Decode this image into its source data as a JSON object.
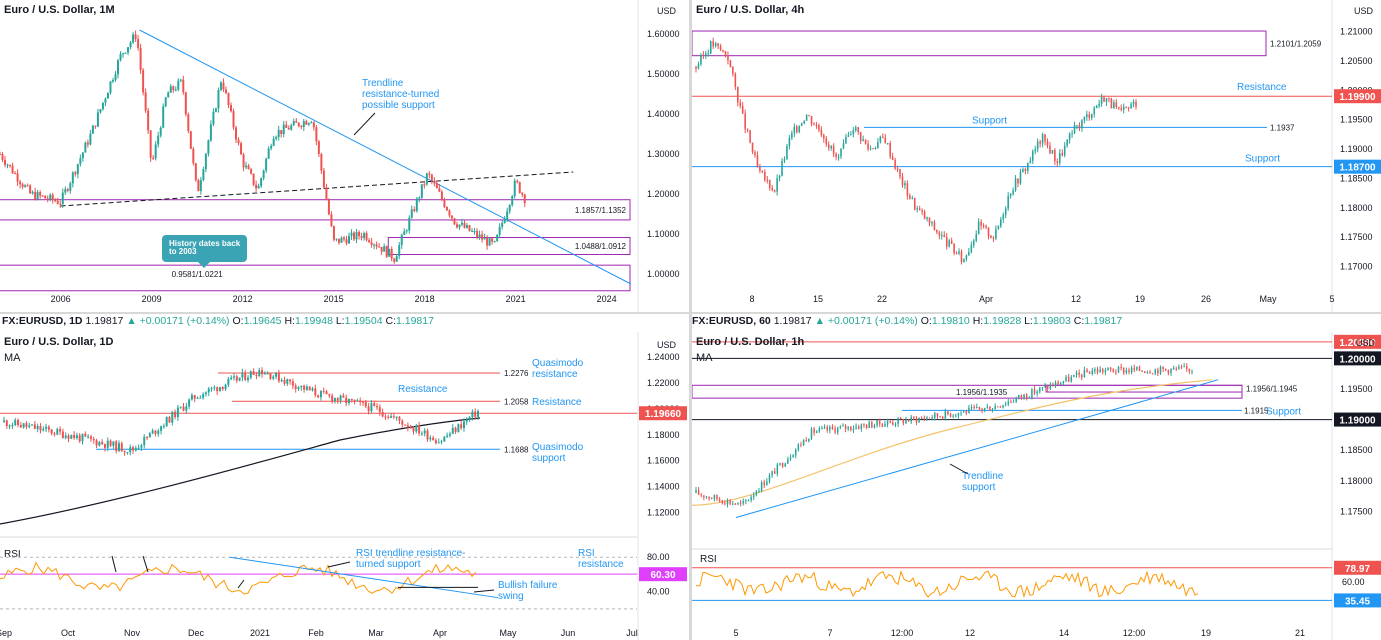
{
  "panels": {
    "monthly": {
      "title": "Euro / U.S. Dollar, 1M",
      "currency": "USD",
      "y_ticks": [
        "1.60000",
        "1.50000",
        "1.40000",
        "1.30000",
        "1.20000",
        "1.10000",
        "1.00000"
      ],
      "x_ticks": [
        "2006",
        "2009",
        "2012",
        "2015",
        "2018",
        "2021",
        "2024"
      ],
      "zone_labels": [
        "1.1857/1.1352",
        "1.0488/1.0912",
        "0.9581/1.0221"
      ],
      "annotation_trendline": [
        "Trendline",
        "resistance-turned",
        "possible support"
      ],
      "history_note": [
        "History dates back",
        "to 2003"
      ]
    },
    "h4": {
      "title": "Euro / U.S. Dollar, 4h",
      "currency": "USD",
      "y_ticks": [
        "1.21000",
        "1.20500",
        "1.20000",
        "1.19500",
        "1.19000",
        "1.18500",
        "1.18000",
        "1.17500",
        "1.17000"
      ],
      "x_ticks": [
        "8",
        "15",
        "22",
        "Apr",
        "12",
        "19",
        "26",
        "May",
        "5"
      ],
      "zone_label": "1.2101/1.2059",
      "level_1937": "1.1937",
      "resistance": "Resistance",
      "support_inner": "Support",
      "support_outer": "Support",
      "price_tag_res": "1.19900",
      "price_tag_sup": "1.18700"
    },
    "daily": {
      "ticker": {
        "symbol": "FX:EURUSD, 1D",
        "last": "1.19817",
        "change": "▲ +0.00171 (+0.14%)",
        "o_label": "O:",
        "o": "1.19645",
        "h_label": "H:",
        "h": "1.19948",
        "l_label": "L:",
        "l": "1.19504",
        "c_label": "C:",
        "c": "1.19817"
      },
      "title": "Euro / U.S. Dollar, 1D",
      "ma_label": "MA",
      "currency": "USD",
      "y_ticks": [
        "1.24000",
        "1.22000",
        "1.20000",
        "1.18000",
        "1.16000",
        "1.14000",
        "1.12000"
      ],
      "x_ticks": [
        "Sep",
        "Oct",
        "Nov",
        "Dec",
        "2021",
        "Feb",
        "Mar",
        "Apr",
        "May",
        "Jun",
        "Jul"
      ],
      "levels": [
        "1.2276",
        "1.2058",
        "1.1688"
      ],
      "qm_resistance": [
        "Quasimodo",
        "resistance"
      ],
      "resistance_1": "Resistance",
      "resistance_2": "Resistance",
      "qm_support": [
        "Quasimodo",
        "support"
      ],
      "price_tag": "1.19660",
      "rsi": {
        "label": "RSI",
        "y_ticks": [
          "80.00",
          "40.00"
        ],
        "value_tag": "60.30",
        "note_trend": [
          "RSI trendline resistance-",
          "turned support"
        ],
        "note_res": [
          "RSI",
          "resistance"
        ],
        "note_fail": [
          "Bullish failure",
          "swing"
        ]
      }
    },
    "hourly": {
      "ticker": {
        "symbol": "FX:EURUSD, 60",
        "last": "1.19817",
        "change": "▲ +0.00171 (+0.14%)",
        "o_label": "O:",
        "o": "1.19810",
        "h_label": "H:",
        "h": "1.19828",
        "l_label": "L:",
        "l": "1.19803",
        "c_label": "C:",
        "c": "1.19817"
      },
      "title": "Euro / U.S. Dollar, 1h",
      "ma_label": "MA",
      "currency": "USD",
      "y_ticks": [
        "1.19500",
        "1.18500",
        "1.18000",
        "1.17500"
      ],
      "x_ticks": [
        "5",
        "7",
        "12:00",
        "12",
        "14",
        "12:00",
        "19",
        "21"
      ],
      "zone_labels": [
        "1.1956/1.1935",
        "1.1956/1.1945"
      ],
      "level_1915": "1.1915",
      "support": "Support",
      "trendline_note": [
        "Trendline",
        "support"
      ],
      "tag_top": "1.20200",
      "tag_1": "1.20000",
      "tag_2": "1.19000",
      "rsi": {
        "label": "RSI",
        "y_tick": "60.00",
        "tag_top": "78.97",
        "tag_bottom": "35.45"
      }
    }
  },
  "chart_data": [
    {
      "type": "line",
      "title": "Euro / U.S. Dollar, 1M",
      "x": [
        2004.0,
        2005.0,
        2006.0,
        2007.0,
        2008.0,
        2008.5,
        2009.0,
        2009.5,
        2010.0,
        2010.5,
        2011.3,
        2012.0,
        2012.5,
        2013.0,
        2014.3,
        2015.0,
        2016.0,
        2017.0,
        2018.1,
        2019.0,
        2020.3,
        2021.0,
        2021.3
      ],
      "y": [
        1.3,
        1.2,
        1.18,
        1.35,
        1.55,
        1.6,
        1.27,
        1.45,
        1.48,
        1.2,
        1.49,
        1.28,
        1.21,
        1.35,
        1.39,
        1.08,
        1.1,
        1.04,
        1.25,
        1.13,
        1.07,
        1.23,
        1.19
      ],
      "xlim": [
        2004.0,
        2025.0
      ],
      "ylim": [
        0.96,
        1.64
      ],
      "xlabel": "",
      "ylabel": ""
    },
    {
      "type": "line",
      "title": "Euro / U.S. Dollar, 4h",
      "x": [
        0,
        2,
        4,
        6,
        8,
        10,
        12,
        14,
        16,
        18,
        20,
        22,
        24,
        26,
        28,
        30,
        32,
        34,
        36,
        38,
        40,
        42,
        44,
        46,
        48,
        50,
        52,
        54,
        56
      ],
      "y": [
        1.204,
        1.208,
        1.206,
        1.195,
        1.186,
        1.183,
        1.192,
        1.196,
        1.193,
        1.188,
        1.194,
        1.19,
        1.192,
        1.185,
        1.18,
        1.177,
        1.174,
        1.171,
        1.177,
        1.175,
        1.183,
        1.187,
        1.192,
        1.188,
        1.193,
        1.196,
        1.199,
        1.196,
        1.198
      ],
      "ylim": [
        1.166,
        1.213
      ]
    },
    {
      "type": "line",
      "title": "Euro / U.S. Dollar, 1D",
      "x": [
        "Sep",
        "Oct",
        "Nov",
        "Dec",
        "2021",
        "Feb",
        "Mar",
        "Apr",
        "May"
      ],
      "y": [
        1.19,
        1.18,
        1.168,
        1.21,
        1.23,
        1.212,
        1.2,
        1.175,
        1.198
      ],
      "ylim": [
        1.105,
        1.25
      ]
    },
    {
      "type": "line",
      "title": "Euro / U.S. Dollar, 1h",
      "x": [
        "5",
        "7",
        "12:00",
        "12",
        "14",
        "12:00",
        "19"
      ],
      "y": [
        1.178,
        1.176,
        1.188,
        1.19,
        1.192,
        1.198,
        1.1982
      ],
      "ylim": [
        1.17,
        1.203
      ]
    }
  ]
}
